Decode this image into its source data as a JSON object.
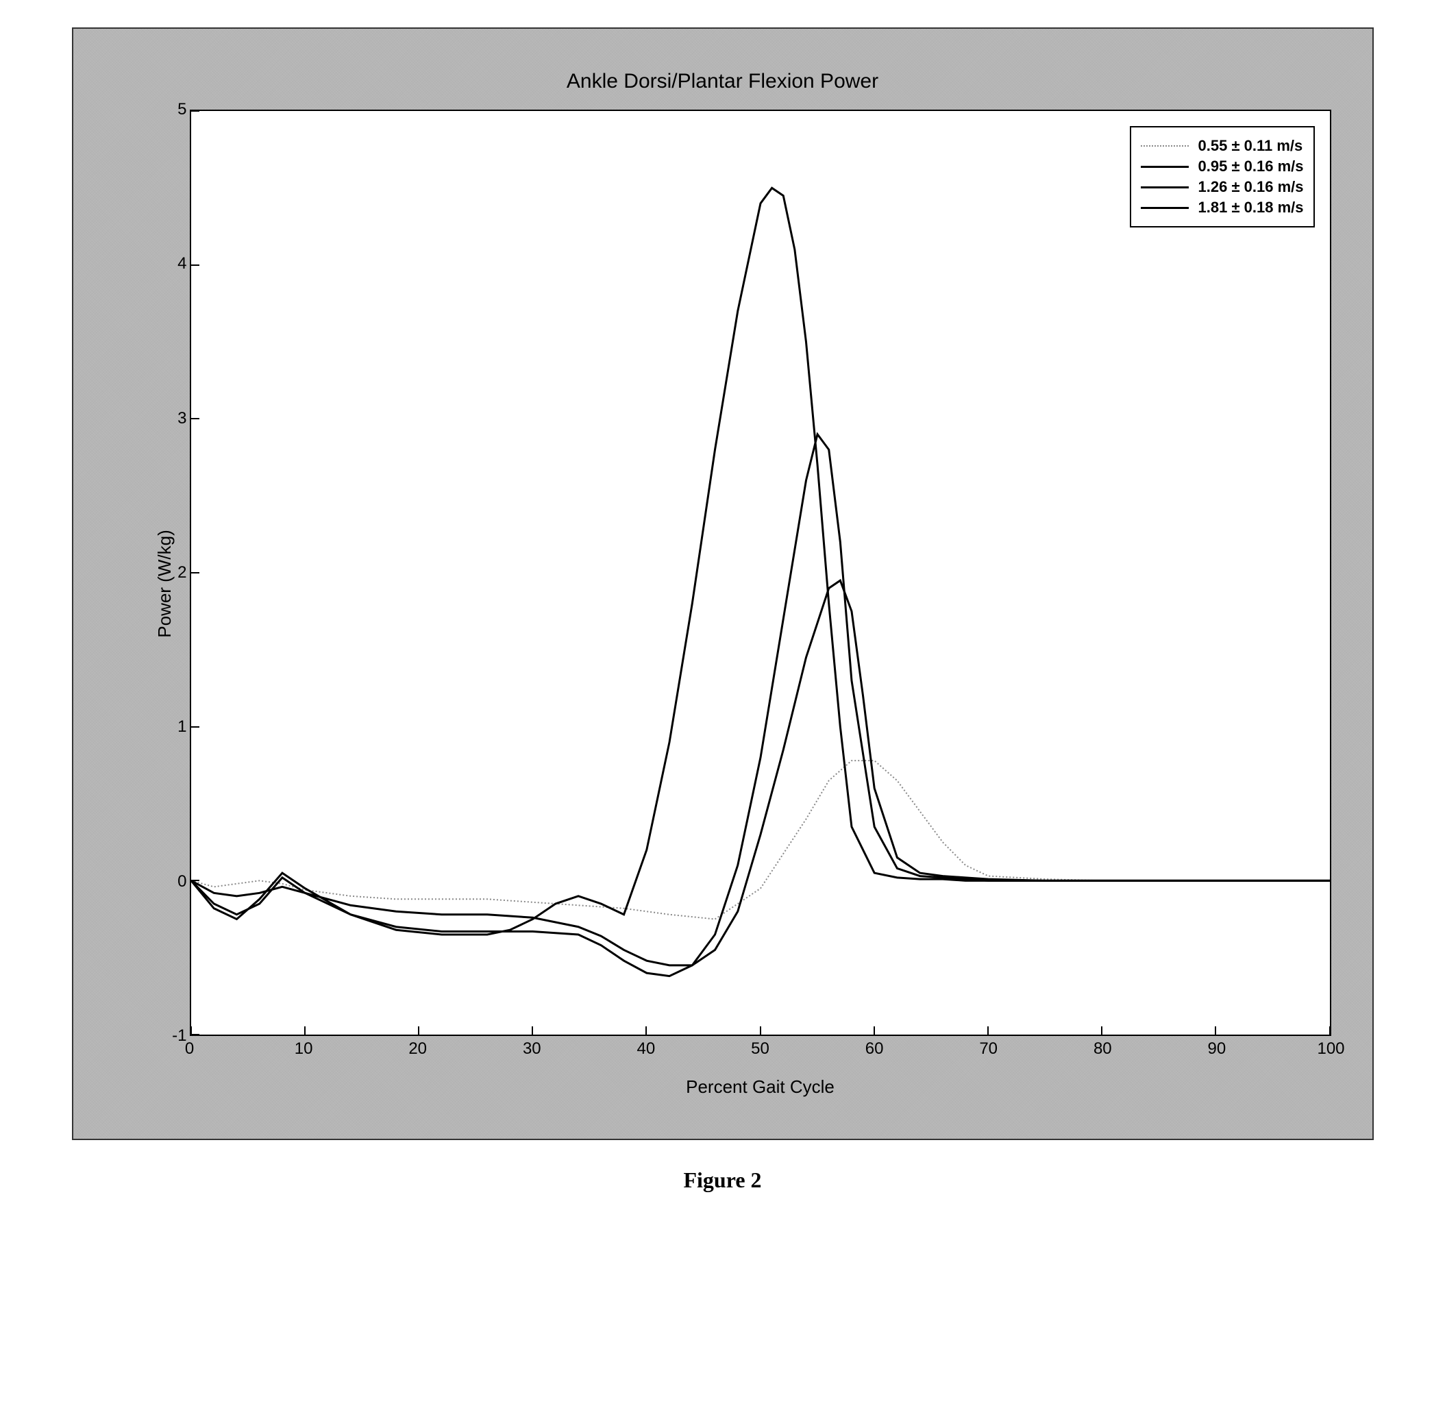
{
  "caption": "Figure 2",
  "caption_fontsize": 32,
  "chart": {
    "type": "line",
    "title": "Ankle Dorsi/Plantar Flexion Power",
    "title_fontsize": 30,
    "xlabel": "Percent Gait Cycle",
    "ylabel": "Power (W/kg)",
    "label_fontsize": 26,
    "tick_fontsize": 24,
    "background_color": "#ffffff",
    "frame_color": "#b8b8b8",
    "axis_color": "#000000",
    "xlim": [
      0,
      100
    ],
    "ylim": [
      -1,
      5
    ],
    "xticks": [
      0,
      10,
      20,
      30,
      40,
      50,
      60,
      70,
      80,
      90,
      100
    ],
    "yticks": [
      -1,
      0,
      1,
      2,
      3,
      4,
      5
    ],
    "legend": {
      "position": "upper-right",
      "fontsize": 22,
      "border_color": "#000000",
      "background": "#ffffff"
    },
    "series": [
      {
        "label": "0.55 ± 0.11 m/s",
        "color": "#888888",
        "width": 2,
        "dash": "2,3",
        "x": [
          0,
          2,
          4,
          6,
          8,
          10,
          14,
          18,
          22,
          26,
          30,
          34,
          38,
          42,
          46,
          50,
          54,
          56,
          58,
          60,
          62,
          64,
          66,
          68,
          70,
          75,
          80,
          90,
          100
        ],
        "y": [
          0.0,
          -0.04,
          -0.02,
          0.0,
          -0.02,
          -0.06,
          -0.1,
          -0.12,
          -0.12,
          -0.12,
          -0.14,
          -0.16,
          -0.18,
          -0.22,
          -0.25,
          -0.05,
          0.4,
          0.65,
          0.78,
          0.78,
          0.65,
          0.45,
          0.25,
          0.1,
          0.03,
          0.01,
          0.0,
          0.0,
          0.0
        ]
      },
      {
        "label": "0.95 ± 0.16 m/s",
        "color": "#000000",
        "width": 3,
        "dash": "none",
        "x": [
          0,
          2,
          4,
          6,
          8,
          10,
          14,
          18,
          22,
          26,
          30,
          34,
          36,
          38,
          40,
          42,
          44,
          46,
          48,
          50,
          52,
          54,
          56,
          57,
          58,
          59,
          60,
          62,
          64,
          66,
          68,
          70,
          75,
          80,
          90,
          100
        ],
        "y": [
          0.0,
          -0.08,
          -0.1,
          -0.08,
          -0.04,
          -0.08,
          -0.16,
          -0.2,
          -0.22,
          -0.22,
          -0.24,
          -0.3,
          -0.36,
          -0.45,
          -0.52,
          -0.55,
          -0.55,
          -0.45,
          -0.2,
          0.3,
          0.85,
          1.45,
          1.9,
          1.95,
          1.75,
          1.2,
          0.6,
          0.15,
          0.05,
          0.03,
          0.02,
          0.01,
          0.0,
          0.0,
          0.0,
          0.0
        ]
      },
      {
        "label": "1.26 ± 0.16 m/s",
        "color": "#000000",
        "width": 3,
        "dash": "none",
        "x": [
          0,
          2,
          4,
          6,
          8,
          10,
          14,
          18,
          22,
          26,
          30,
          34,
          36,
          38,
          40,
          42,
          44,
          46,
          48,
          50,
          52,
          54,
          55,
          56,
          57,
          58,
          60,
          62,
          64,
          66,
          68,
          70,
          75,
          80,
          90,
          100
        ],
        "y": [
          0.0,
          -0.15,
          -0.22,
          -0.15,
          0.02,
          -0.08,
          -0.22,
          -0.3,
          -0.33,
          -0.33,
          -0.33,
          -0.35,
          -0.42,
          -0.52,
          -0.6,
          -0.62,
          -0.55,
          -0.35,
          0.1,
          0.8,
          1.7,
          2.6,
          2.9,
          2.8,
          2.2,
          1.3,
          0.35,
          0.08,
          0.03,
          0.02,
          0.01,
          0.0,
          0.0,
          0.0,
          0.0,
          0.0
        ]
      },
      {
        "label": "1.81 ± 0.18 m/s",
        "color": "#000000",
        "width": 3,
        "dash": "none",
        "x": [
          0,
          2,
          4,
          6,
          8,
          10,
          14,
          18,
          22,
          26,
          28,
          30,
          32,
          34,
          36,
          38,
          40,
          42,
          44,
          46,
          48,
          50,
          51,
          52,
          53,
          54,
          55,
          56,
          57,
          58,
          60,
          62,
          64,
          66,
          68,
          70,
          75,
          80,
          90,
          100
        ],
        "y": [
          0.0,
          -0.18,
          -0.25,
          -0.12,
          0.05,
          -0.05,
          -0.22,
          -0.32,
          -0.35,
          -0.35,
          -0.32,
          -0.25,
          -0.15,
          -0.1,
          -0.15,
          -0.22,
          0.2,
          0.9,
          1.8,
          2.8,
          3.7,
          4.4,
          4.5,
          4.45,
          4.1,
          3.5,
          2.7,
          1.8,
          1.0,
          0.35,
          0.05,
          0.02,
          0.01,
          0.01,
          0.0,
          0.0,
          0.0,
          0.0,
          0.0,
          0.0
        ]
      }
    ]
  }
}
